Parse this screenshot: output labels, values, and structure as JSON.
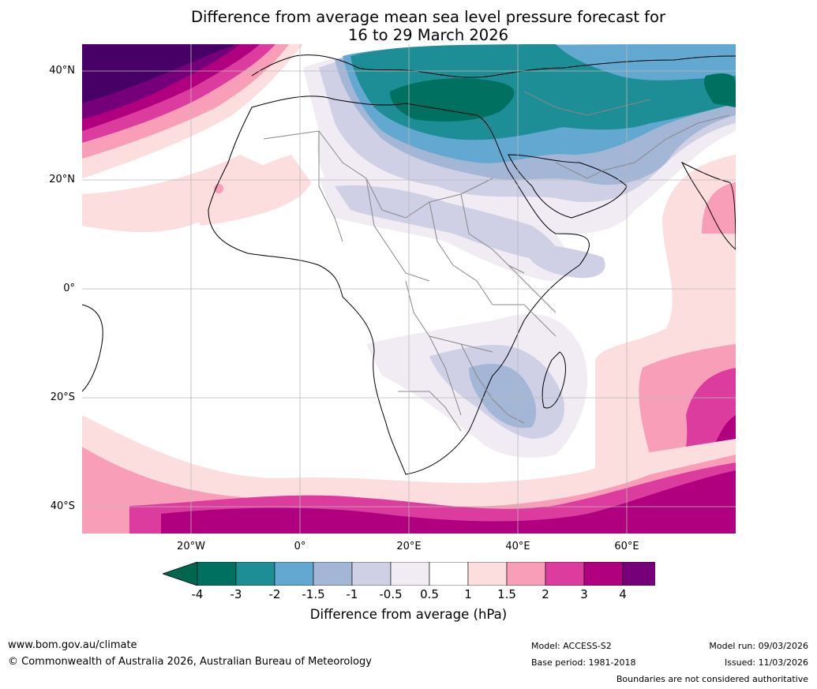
{
  "title": {
    "line1": "Difference from average mean sea level pressure forecast for",
    "line2": "16 to 29 March 2026"
  },
  "map": {
    "lat_labels": [
      "40°N",
      "20°N",
      "0°",
      "20°S",
      "40°S"
    ],
    "lon_labels": [
      "20°W",
      "0°",
      "20°E",
      "40°E",
      "60°E"
    ]
  },
  "colorbar": {
    "tick_labels": [
      "-4",
      "-3",
      "-2",
      "-1.5",
      "-1",
      "-0.5",
      "0.5",
      "1",
      "1.5",
      "2",
      "3",
      "4"
    ],
    "colors": [
      "#007160",
      "#1e8e96",
      "#63a8d0",
      "#a3b6d6",
      "#cfd0e6",
      "#f1ecf4",
      "#ffffff",
      "#fddede",
      "#f89eb9",
      "#db3c9e",
      "#b0007f",
      "#76007a"
    ],
    "extend_low_color": "#00664f",
    "extend_high_color": "#470066",
    "label": "Difference from average (hPa)"
  },
  "footer": {
    "website": "www.bom.gov.au/climate",
    "copyright": "© Commonwealth of Australia 2026, Australian Bureau of Meteorology",
    "model": "Model: ACCESS-S2",
    "base_period": "Base period: 1981-2018",
    "model_run": "Model run: 09/03/2026",
    "issued": "Issued: 11/03/2026",
    "disclaimer": "Boundaries are not considered authoritative"
  }
}
